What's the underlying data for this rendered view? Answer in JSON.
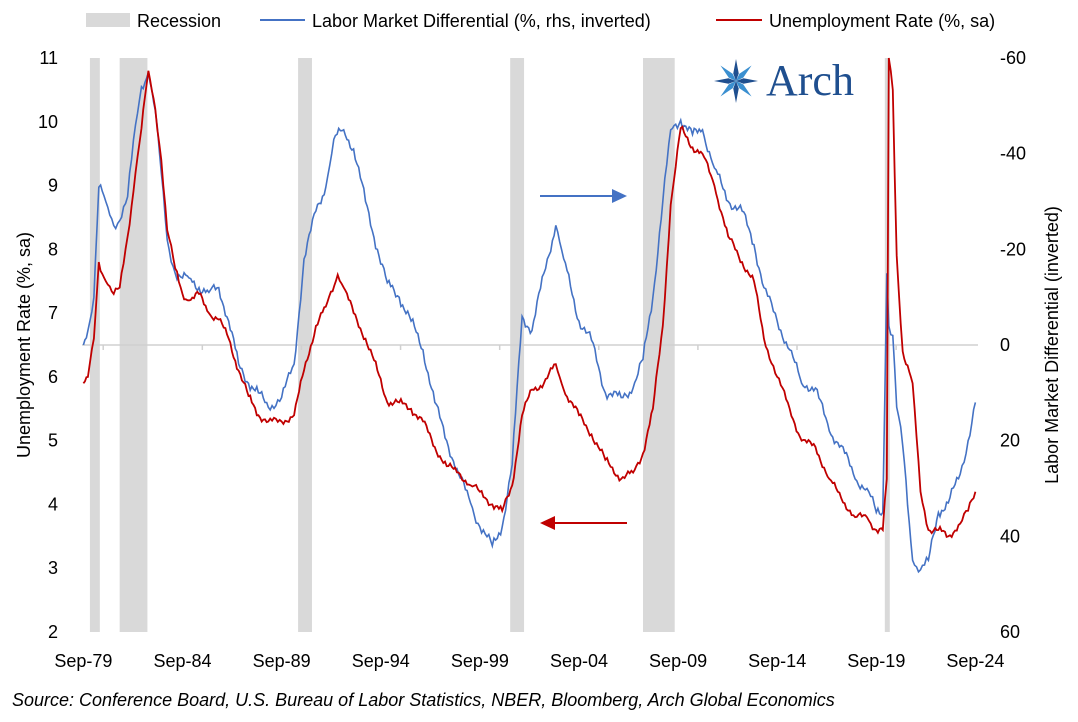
{
  "chart_data": {
    "type": "line",
    "title": "",
    "legend": {
      "placement": "top",
      "entries": [
        {
          "label": "Recession",
          "color": "#d9d9d9",
          "kind": "band"
        },
        {
          "label": "Labor Market Differential (%, rhs, inverted)",
          "color": "#4472c4",
          "kind": "line"
        },
        {
          "label": "Unemployment Rate (%, sa)",
          "color": "#c00000",
          "kind": "line"
        }
      ]
    },
    "y_left": {
      "label": "Unemployment Rate (%, sa)",
      "min": 2,
      "max": 11,
      "ticks": [
        "2",
        "3",
        "4",
        "5",
        "6",
        "7",
        "8",
        "9",
        "10",
        "11"
      ]
    },
    "y_right": {
      "label": "Labor Market Differential (inverted)",
      "min": -60,
      "max": 60,
      "inverted": true,
      "ticks": [
        "-60",
        "-40",
        "-20",
        "0",
        "20",
        "40",
        "60"
      ],
      "tick_values": [
        -60,
        -40,
        -20,
        0,
        20,
        40,
        60
      ]
    },
    "x": {
      "min": 1979.6,
      "max": 2024.8,
      "tick_labels": [
        "Sep-79",
        "Sep-84",
        "Sep-89",
        "Sep-94",
        "Sep-99",
        "Sep-04",
        "Sep-09",
        "Sep-14",
        "Sep-19",
        "Sep-24"
      ],
      "tick_values": [
        1979.67,
        1984.67,
        1989.67,
        1994.67,
        1999.67,
        2004.67,
        2009.67,
        2014.67,
        2019.67,
        2024.67
      ]
    },
    "recessions": [
      [
        1980.0,
        1980.5
      ],
      [
        1981.5,
        1982.9
      ],
      [
        1990.5,
        1991.2
      ],
      [
        2001.2,
        2001.9
      ],
      [
        2007.9,
        2009.5
      ],
      [
        2020.1,
        2020.35
      ]
    ],
    "series": [
      {
        "name": "Unemployment Rate (%, sa)",
        "color": "#c00000",
        "axis": "left",
        "points": [
          [
            1979.67,
            5.9
          ],
          [
            1979.9,
            6.0
          ],
          [
            1980.2,
            6.6
          ],
          [
            1980.45,
            7.8
          ],
          [
            1980.8,
            7.5
          ],
          [
            1981.2,
            7.3
          ],
          [
            1981.5,
            7.4
          ],
          [
            1981.9,
            8.2
          ],
          [
            1982.3,
            9.2
          ],
          [
            1982.6,
            9.9
          ],
          [
            1982.95,
            10.8
          ],
          [
            1983.3,
            10.2
          ],
          [
            1983.6,
            9.4
          ],
          [
            1983.9,
            8.3
          ],
          [
            1984.3,
            7.7
          ],
          [
            1984.67,
            7.3
          ],
          [
            1985.0,
            7.2
          ],
          [
            1985.5,
            7.3
          ],
          [
            1986.0,
            7.0
          ],
          [
            1986.5,
            6.9
          ],
          [
            1987.0,
            6.6
          ],
          [
            1987.5,
            6.1
          ],
          [
            1988.0,
            5.7
          ],
          [
            1988.5,
            5.4
          ],
          [
            1989.0,
            5.3
          ],
          [
            1989.67,
            5.3
          ],
          [
            1990.3,
            5.4
          ],
          [
            1990.8,
            6.1
          ],
          [
            1991.4,
            6.8
          ],
          [
            1991.9,
            7.1
          ],
          [
            1992.5,
            7.6
          ],
          [
            1992.8,
            7.4
          ],
          [
            1993.3,
            7.0
          ],
          [
            1993.9,
            6.6
          ],
          [
            1994.5,
            6.1
          ],
          [
            1995.0,
            5.6
          ],
          [
            1995.6,
            5.6
          ],
          [
            1996.2,
            5.5
          ],
          [
            1996.8,
            5.3
          ],
          [
            1997.4,
            4.9
          ],
          [
            1998.0,
            4.6
          ],
          [
            1998.6,
            4.5
          ],
          [
            1999.2,
            4.3
          ],
          [
            1999.67,
            4.2
          ],
          [
            2000.3,
            4.0
          ],
          [
            2000.8,
            3.9
          ],
          [
            2001.3,
            4.3
          ],
          [
            2001.8,
            5.4
          ],
          [
            2002.3,
            5.8
          ],
          [
            2002.9,
            5.9
          ],
          [
            2003.5,
            6.2
          ],
          [
            2003.9,
            5.8
          ],
          [
            2004.67,
            5.4
          ],
          [
            2005.3,
            5.1
          ],
          [
            2006.0,
            4.7
          ],
          [
            2006.8,
            4.4
          ],
          [
            2007.4,
            4.5
          ],
          [
            2007.9,
            4.8
          ],
          [
            2008.4,
            5.5
          ],
          [
            2008.9,
            6.8
          ],
          [
            2009.3,
            8.7
          ],
          [
            2009.8,
            9.9
          ],
          [
            2010.4,
            9.6
          ],
          [
            2010.9,
            9.5
          ],
          [
            2011.5,
            9.0
          ],
          [
            2012.2,
            8.2
          ],
          [
            2012.9,
            7.8
          ],
          [
            2013.5,
            7.5
          ],
          [
            2014.0,
            6.6
          ],
          [
            2014.67,
            6.0
          ],
          [
            2015.3,
            5.5
          ],
          [
            2015.9,
            5.0
          ],
          [
            2016.6,
            4.9
          ],
          [
            2017.3,
            4.4
          ],
          [
            2017.9,
            4.1
          ],
          [
            2018.6,
            3.8
          ],
          [
            2019.2,
            3.8
          ],
          [
            2019.67,
            3.6
          ],
          [
            2020.0,
            3.6
          ],
          [
            2020.2,
            4.4
          ],
          [
            2020.3,
            11.0
          ],
          [
            2020.5,
            10.5
          ],
          [
            2020.7,
            7.9
          ],
          [
            2021.0,
            6.4
          ],
          [
            2021.5,
            5.9
          ],
          [
            2021.9,
            4.2
          ],
          [
            2022.3,
            3.6
          ],
          [
            2022.8,
            3.6
          ],
          [
            2023.3,
            3.5
          ],
          [
            2023.9,
            3.7
          ],
          [
            2024.3,
            3.9
          ],
          [
            2024.67,
            4.2
          ]
        ]
      },
      {
        "name": "Labor Market Differential (%, rhs, inverted)",
        "color": "#4472c4",
        "axis": "right",
        "points": [
          [
            1979.67,
            0
          ],
          [
            1979.9,
            -3
          ],
          [
            1980.2,
            -10
          ],
          [
            1980.45,
            -33
          ],
          [
            1980.8,
            -30
          ],
          [
            1981.2,
            -25
          ],
          [
            1981.5,
            -26
          ],
          [
            1981.9,
            -31
          ],
          [
            1982.3,
            -46
          ],
          [
            1982.6,
            -54
          ],
          [
            1982.95,
            -57
          ],
          [
            1983.3,
            -49
          ],
          [
            1983.6,
            -36
          ],
          [
            1983.9,
            -22
          ],
          [
            1984.3,
            -15
          ],
          [
            1984.67,
            -14
          ],
          [
            1985.0,
            -14
          ],
          [
            1985.5,
            -12
          ],
          [
            1986.0,
            -11
          ],
          [
            1986.5,
            -12
          ],
          [
            1987.0,
            -5
          ],
          [
            1987.5,
            4
          ],
          [
            1988.0,
            8
          ],
          [
            1988.5,
            10
          ],
          [
            1989.0,
            13
          ],
          [
            1989.67,
            11
          ],
          [
            1990.3,
            4
          ],
          [
            1990.8,
            -18
          ],
          [
            1991.4,
            -28
          ],
          [
            1991.9,
            -33
          ],
          [
            1992.3,
            -43
          ],
          [
            1992.8,
            -45
          ],
          [
            1993.3,
            -41
          ],
          [
            1993.9,
            -30
          ],
          [
            1994.5,
            -20
          ],
          [
            1995.0,
            -13
          ],
          [
            1995.6,
            -10
          ],
          [
            1996.2,
            -5
          ],
          [
            1996.8,
            1
          ],
          [
            1997.4,
            12
          ],
          [
            1998.0,
            20
          ],
          [
            1998.6,
            27
          ],
          [
            1999.2,
            33
          ],
          [
            1999.67,
            38
          ],
          [
            2000.3,
            42
          ],
          [
            2000.8,
            38
          ],
          [
            2001.3,
            25
          ],
          [
            2001.8,
            -6
          ],
          [
            2002.3,
            -3
          ],
          [
            2002.9,
            -15
          ],
          [
            2003.5,
            -25
          ],
          [
            2003.9,
            -18
          ],
          [
            2004.67,
            -5
          ],
          [
            2005.3,
            -1
          ],
          [
            2006.0,
            10
          ],
          [
            2006.8,
            11
          ],
          [
            2007.4,
            9
          ],
          [
            2007.9,
            3
          ],
          [
            2008.4,
            -10
          ],
          [
            2008.9,
            -30
          ],
          [
            2009.3,
            -45
          ],
          [
            2009.8,
            -47
          ],
          [
            2010.4,
            -44
          ],
          [
            2010.9,
            -45
          ],
          [
            2011.5,
            -37
          ],
          [
            2012.2,
            -30
          ],
          [
            2012.9,
            -28
          ],
          [
            2013.5,
            -21
          ],
          [
            2014.0,
            -12
          ],
          [
            2014.67,
            -5
          ],
          [
            2015.3,
            1
          ],
          [
            2015.9,
            8
          ],
          [
            2016.6,
            9
          ],
          [
            2017.3,
            18
          ],
          [
            2017.9,
            21
          ],
          [
            2018.6,
            28
          ],
          [
            2019.2,
            30
          ],
          [
            2019.67,
            35
          ],
          [
            2020.0,
            35
          ],
          [
            2020.2,
            -15
          ],
          [
            2020.3,
            -4
          ],
          [
            2020.5,
            -2
          ],
          [
            2020.7,
            13
          ],
          [
            2021.0,
            21
          ],
          [
            2021.5,
            45
          ],
          [
            2021.9,
            47
          ],
          [
            2022.3,
            45
          ],
          [
            2022.8,
            35
          ],
          [
            2023.3,
            33
          ],
          [
            2023.9,
            27
          ],
          [
            2024.3,
            20
          ],
          [
            2024.67,
            12
          ]
        ]
      }
    ]
  },
  "annotations": {
    "source": "Source: Conference Board, U.S. Bureau of Labor Statistics, NBER, Bloomberg, Arch Global Economics",
    "logo_text": "Arch",
    "arrow_right_color": "#4472c4",
    "arrow_left_color": "#c00000"
  }
}
